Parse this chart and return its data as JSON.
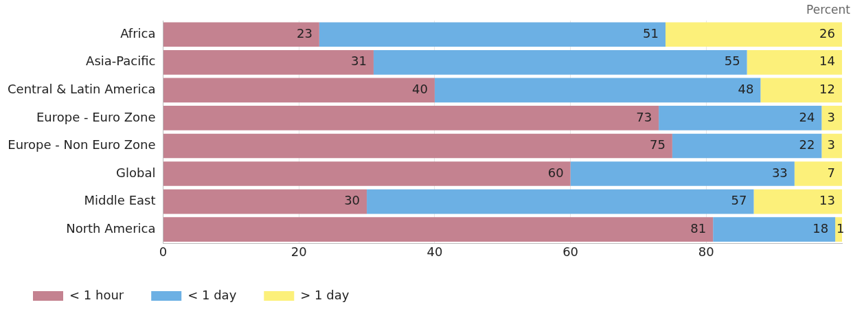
{
  "chart_data": {
    "type": "bar",
    "orientation": "horizontal",
    "stacked": true,
    "categories": [
      "Africa",
      "Asia-Pacific",
      "Central & Latin America",
      "Europe - Euro Zone",
      "Europe - Non Euro Zone",
      "Global",
      "Middle East",
      "North America"
    ],
    "series": [
      {
        "name": "< 1 hour",
        "color": "#c48290",
        "values": [
          23,
          31,
          40,
          73,
          75,
          60,
          30,
          81
        ]
      },
      {
        "name": "< 1 day",
        "color": "#6cb0e4",
        "values": [
          51,
          55,
          48,
          24,
          22,
          33,
          57,
          18
        ]
      },
      {
        "name": "> 1 day",
        "color": "#fcf07a",
        "values": [
          26,
          14,
          12,
          3,
          3,
          7,
          13,
          1
        ]
      }
    ],
    "xlim": [
      0,
      100
    ],
    "xticks": [
      0,
      20,
      40,
      60,
      80
    ],
    "grid": "x",
    "legend": "bottom",
    "data_labels": true,
    "annotations": [
      "Percent"
    ]
  }
}
